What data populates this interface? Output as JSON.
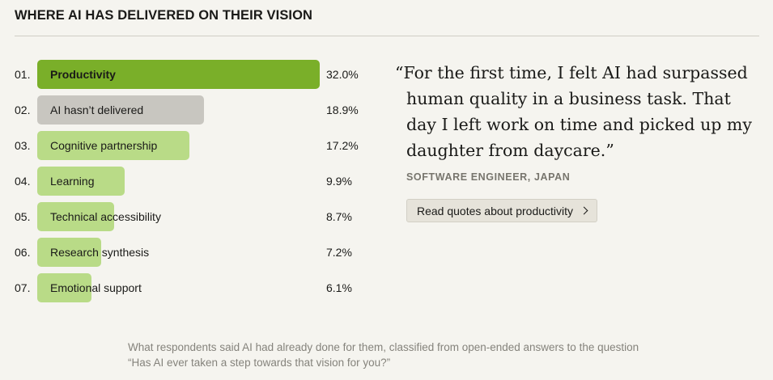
{
  "header": {
    "title": "WHERE AI HAS DELIVERED ON THEIR VISION"
  },
  "chart_data": {
    "type": "bar",
    "orientation": "horizontal",
    "title": "WHERE AI HAS DELIVERED ON THEIR VISION",
    "ranks": [
      "01.",
      "02.",
      "03.",
      "04.",
      "05.",
      "06.",
      "07."
    ],
    "categories": [
      "Productivity",
      "AI hasn’t delivered",
      "Cognitive partnership",
      "Learning",
      "Technical accessibility",
      "Research synthesis",
      "Emotional support"
    ],
    "values": [
      32.0,
      18.9,
      17.2,
      9.9,
      8.7,
      7.2,
      6.1
    ],
    "value_labels": [
      "32.0%",
      "18.9%",
      "17.2%",
      "9.9%",
      "8.7%",
      "7.2%",
      "6.1%"
    ],
    "xlim": [
      0,
      32.0
    ],
    "unit": "%",
    "colors": [
      "#7aaf29",
      "#c8c6c0",
      "#b9db87",
      "#b9db87",
      "#b9db87",
      "#b9db87",
      "#b9db87"
    ],
    "xlabel": "",
    "ylabel": ""
  },
  "quote": {
    "text": "“For the first time, I felt AI had surpassed human quality in a business task. That day I left work on time and picked up my daughter from daycare.”",
    "attribution": "SOFTWARE ENGINEER, JAPAN",
    "button_label": "Read quotes about productivity",
    "button_icon": "chevron-right-icon"
  },
  "caption": {
    "text": "What respondents said AI had already done for them, classified from open-ended answers to the question “Has AI ever taken a step towards that vision for you?”"
  }
}
